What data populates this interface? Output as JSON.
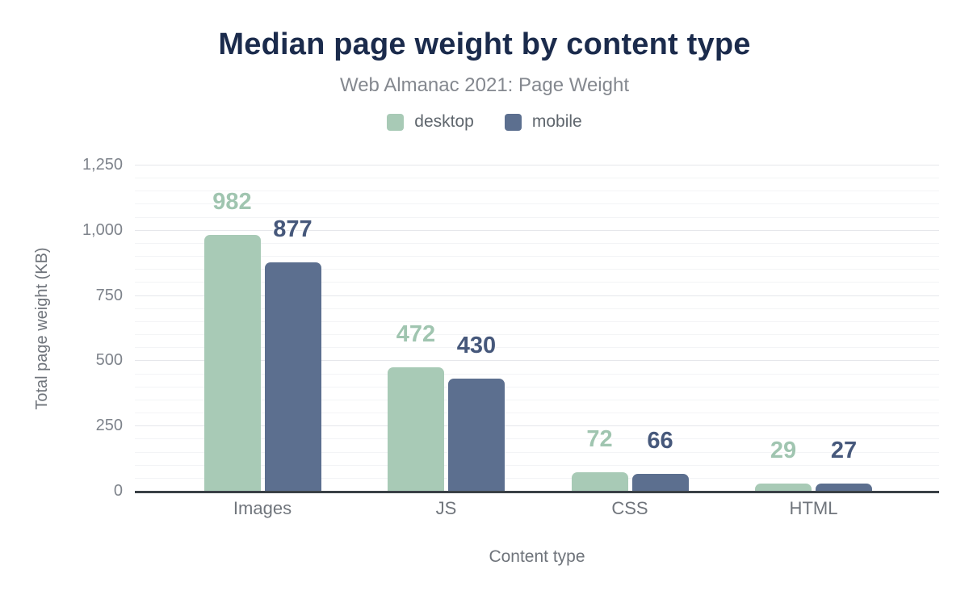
{
  "header": {
    "title": "Median page weight by content type",
    "subtitle": "Web Almanac 2021: Page Weight"
  },
  "chart_data": {
    "type": "bar",
    "title": "Median page weight by content type",
    "subtitle": "Web Almanac 2021: Page Weight",
    "categories": [
      "Images",
      "JS",
      "CSS",
      "HTML"
    ],
    "series": [
      {
        "name": "desktop",
        "color": "#a8cab6",
        "label_color": "#a0c5b0",
        "values": [
          982,
          472,
          72,
          29
        ]
      },
      {
        "name": "mobile",
        "color": "#5c6f8f",
        "label_color": "#46587b",
        "values": [
          877,
          430,
          66,
          27
        ]
      }
    ],
    "xlabel": "Content type",
    "ylabel": "Total page weight (KB)",
    "ylim": [
      0,
      1250
    ],
    "yticks": [
      {
        "value": 0,
        "label": "0"
      },
      {
        "value": 250,
        "label": "250"
      },
      {
        "value": 500,
        "label": "500"
      },
      {
        "value": 750,
        "label": "750"
      },
      {
        "value": 1000,
        "label": "1,000"
      },
      {
        "value": 1250,
        "label": "1,250"
      }
    ],
    "minor_tick_interval": 50,
    "grid": true,
    "legend_position": "top"
  },
  "colors": {
    "title": "#1b2b4c",
    "subtitle": "#84888f",
    "legend_text": "#5f666d",
    "axis_text": "#7e838b",
    "axis_line": "#3a4046",
    "grid_major": "#e6e7eb",
    "grid_minor": "#f3f4f6",
    "background": "#ffffff"
  }
}
